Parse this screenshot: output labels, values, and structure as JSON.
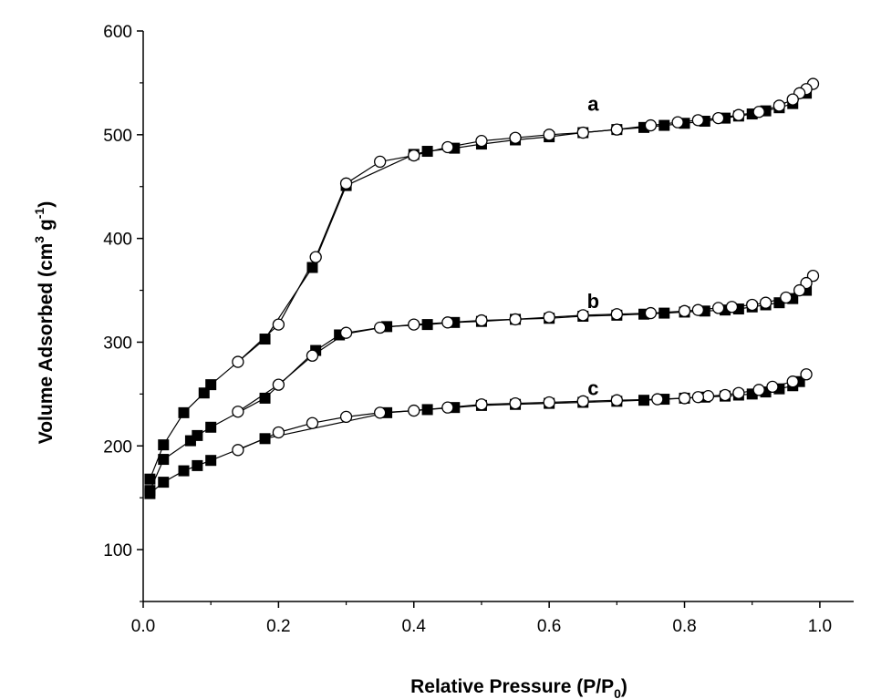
{
  "chart_data": {
    "type": "scatter",
    "title": "",
    "xlabel": {
      "main": "Relative Pressure (P/P",
      "sub": "0",
      "close": ")"
    },
    "ylabel": {
      "main": "Volume Adsorbed (cm",
      "sup1": "3",
      "mid": " g",
      "sup2": "-1",
      "close": ")"
    },
    "xlim": [
      0.0,
      1.05
    ],
    "ylim": [
      50,
      600
    ],
    "xticks": [
      0.0,
      0.2,
      0.4,
      0.6,
      0.8,
      1.0
    ],
    "xtick_labels": [
      "0.0",
      "0.2",
      "0.4",
      "0.6",
      "0.8",
      "1.0"
    ],
    "yticks": [
      100,
      200,
      300,
      400,
      500,
      600
    ],
    "ytick_labels": [
      "100",
      "200",
      "300",
      "400",
      "500",
      "600"
    ],
    "grid": false,
    "series": [
      {
        "label": "a",
        "label_pos": [
          0.665,
          530
        ],
        "adsorption": {
          "marker": "filled-square",
          "x": [
            0.01,
            0.03,
            0.06,
            0.09,
            0.1,
            0.18,
            0.25,
            0.3,
            0.4,
            0.42,
            0.46,
            0.5,
            0.55,
            0.6,
            0.65,
            0.7,
            0.74,
            0.77,
            0.8,
            0.83,
            0.86,
            0.88,
            0.9,
            0.92,
            0.94,
            0.96,
            0.98
          ],
          "y": [
            168,
            201,
            232,
            251,
            259,
            303,
            372,
            451,
            481,
            484,
            487,
            491,
            495,
            498,
            502,
            505,
            507,
            509,
            511,
            513,
            516,
            518,
            520,
            523,
            526,
            530,
            540
          ]
        },
        "desorption": {
          "marker": "open-circle",
          "x": [
            0.99,
            0.98,
            0.97,
            0.96,
            0.94,
            0.91,
            0.88,
            0.85,
            0.82,
            0.79,
            0.75,
            0.7,
            0.65,
            0.6,
            0.55,
            0.5,
            0.45,
            0.4,
            0.35,
            0.3,
            0.255,
            0.2,
            0.14
          ],
          "y": [
            549,
            544,
            540,
            534,
            528,
            522,
            519,
            516,
            514,
            512,
            509,
            505,
            502,
            500,
            497,
            494,
            488,
            480,
            474,
            453,
            382,
            317,
            281
          ]
        }
      },
      {
        "label": "b",
        "label_pos": [
          0.665,
          340
        ],
        "adsorption": {
          "marker": "filled-square",
          "x": [
            0.01,
            0.03,
            0.07,
            0.08,
            0.1,
            0.18,
            0.255,
            0.29,
            0.36,
            0.42,
            0.46,
            0.5,
            0.55,
            0.6,
            0.65,
            0.7,
            0.74,
            0.77,
            0.8,
            0.83,
            0.86,
            0.88,
            0.9,
            0.92,
            0.94,
            0.96,
            0.98
          ],
          "y": [
            157,
            187,
            205,
            210,
            218,
            246,
            292,
            307,
            315,
            317,
            319,
            320,
            322,
            323,
            325,
            326,
            327,
            328,
            329,
            330,
            331,
            332,
            334,
            336,
            338,
            342,
            350
          ]
        },
        "desorption": {
          "marker": "open-circle",
          "x": [
            0.99,
            0.98,
            0.97,
            0.95,
            0.92,
            0.9,
            0.87,
            0.85,
            0.82,
            0.8,
            0.75,
            0.7,
            0.65,
            0.6,
            0.55,
            0.5,
            0.45,
            0.4,
            0.35,
            0.3,
            0.25,
            0.2,
            0.14
          ],
          "y": [
            364,
            357,
            350,
            343,
            338,
            336,
            334,
            333,
            331,
            330,
            328,
            327,
            326,
            324,
            322,
            321,
            319,
            317,
            314,
            309,
            287,
            259,
            233
          ]
        }
      },
      {
        "label": "c",
        "label_pos": [
          0.665,
          256
        ],
        "adsorption": {
          "marker": "filled-square",
          "x": [
            0.01,
            0.03,
            0.06,
            0.08,
            0.1,
            0.18,
            0.36,
            0.42,
            0.46,
            0.5,
            0.55,
            0.6,
            0.65,
            0.7,
            0.74,
            0.77,
            0.8,
            0.83,
            0.86,
            0.88,
            0.9,
            0.92,
            0.94,
            0.96,
            0.97
          ],
          "y": [
            154,
            165,
            176,
            181,
            186,
            207,
            232,
            235,
            237,
            239,
            240,
            241,
            242,
            243,
            244,
            245,
            246,
            247,
            248,
            249,
            250,
            252,
            255,
            258,
            262
          ]
        },
        "desorption": {
          "marker": "open-circle",
          "x": [
            0.98,
            0.96,
            0.93,
            0.91,
            0.88,
            0.86,
            0.835,
            0.82,
            0.8,
            0.76,
            0.7,
            0.65,
            0.6,
            0.55,
            0.5,
            0.45,
            0.4,
            0.35,
            0.3,
            0.25,
            0.2,
            0.14
          ],
          "y": [
            269,
            262,
            257,
            254,
            251,
            249,
            248,
            247,
            246,
            245,
            244,
            243,
            242,
            241,
            240,
            237,
            234,
            232,
            228,
            222,
            213,
            196
          ]
        }
      }
    ]
  }
}
